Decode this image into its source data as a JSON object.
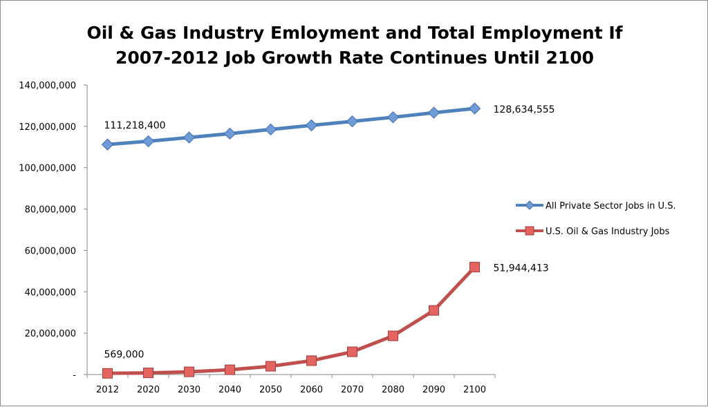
{
  "chart_data": {
    "type": "line",
    "title": "Oil & Gas Industry Emloyment and Total Employment If 2007-2012 Job Growth Rate Continues Until 2100",
    "title_lines": [
      "Oil & Gas Industry Emloyment and Total Employment If",
      "2007-2012 Job Growth Rate Continues Until 2100"
    ],
    "categories": [
      "2012",
      "2020",
      "2030",
      "2040",
      "2050",
      "2060",
      "2070",
      "2080",
      "2090",
      "2100"
    ],
    "ylim": [
      0,
      140000000
    ],
    "yticks": [
      0,
      20000000,
      40000000,
      60000000,
      80000000,
      100000000,
      120000000,
      140000000
    ],
    "ytick_labels": [
      "-",
      "20,000,000",
      "40,000,000",
      "60,000,000",
      "80,000,000",
      "100,000,000",
      "120,000,000",
      "140,000,000"
    ],
    "grid": false,
    "legend": "right",
    "series": [
      {
        "name": "All Private Sector Jobs in U.S.",
        "color": "#4f81bd",
        "marker": "diamond",
        "values": [
          111218400,
          112800000,
          114600000,
          116500000,
          118500000,
          120500000,
          122400000,
          124400000,
          126600000,
          128634555
        ]
      },
      {
        "name": "U.S. Oil & Gas Industry Jobs",
        "color": "#c0504d",
        "marker": "square",
        "values": [
          569000,
          800000,
          1300000,
          2300000,
          4000000,
          6700000,
          11000000,
          18700000,
          31000000,
          51944413
        ]
      }
    ],
    "annotations": [
      {
        "series": 0,
        "index": 0,
        "text": "111,218,400",
        "position": "above"
      },
      {
        "series": 0,
        "index": 9,
        "text": "128,634,555",
        "position": "right"
      },
      {
        "series": 1,
        "index": 0,
        "text": "569,000",
        "position": "above"
      },
      {
        "series": 1,
        "index": 9,
        "text": "51,944,413",
        "position": "right"
      }
    ]
  }
}
